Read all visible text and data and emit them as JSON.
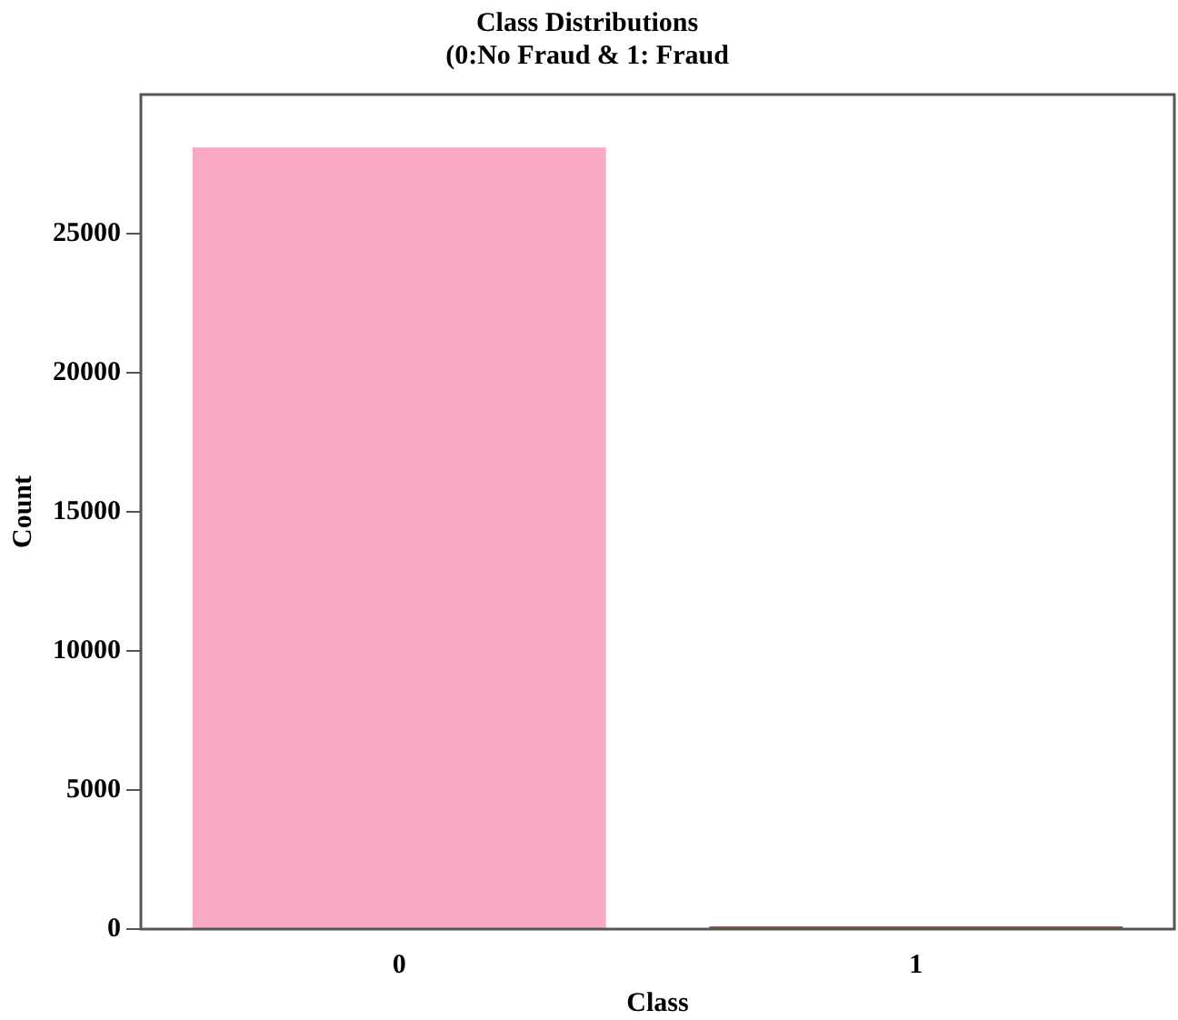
{
  "chart_data": {
    "type": "bar",
    "title": "Class Distributions",
    "subtitle": "(0:No Fraud & 1: Fraud",
    "xlabel": "Class",
    "ylabel": "Count",
    "categories": [
      "0",
      "1"
    ],
    "values": [
      28100,
      100
    ],
    "colors": [
      "#f9a8c6",
      "#a0524a"
    ],
    "ylim": [
      0,
      30000
    ],
    "yticks": [
      0,
      5000,
      10000,
      15000,
      20000,
      25000
    ],
    "grid": false,
    "legend": false
  }
}
